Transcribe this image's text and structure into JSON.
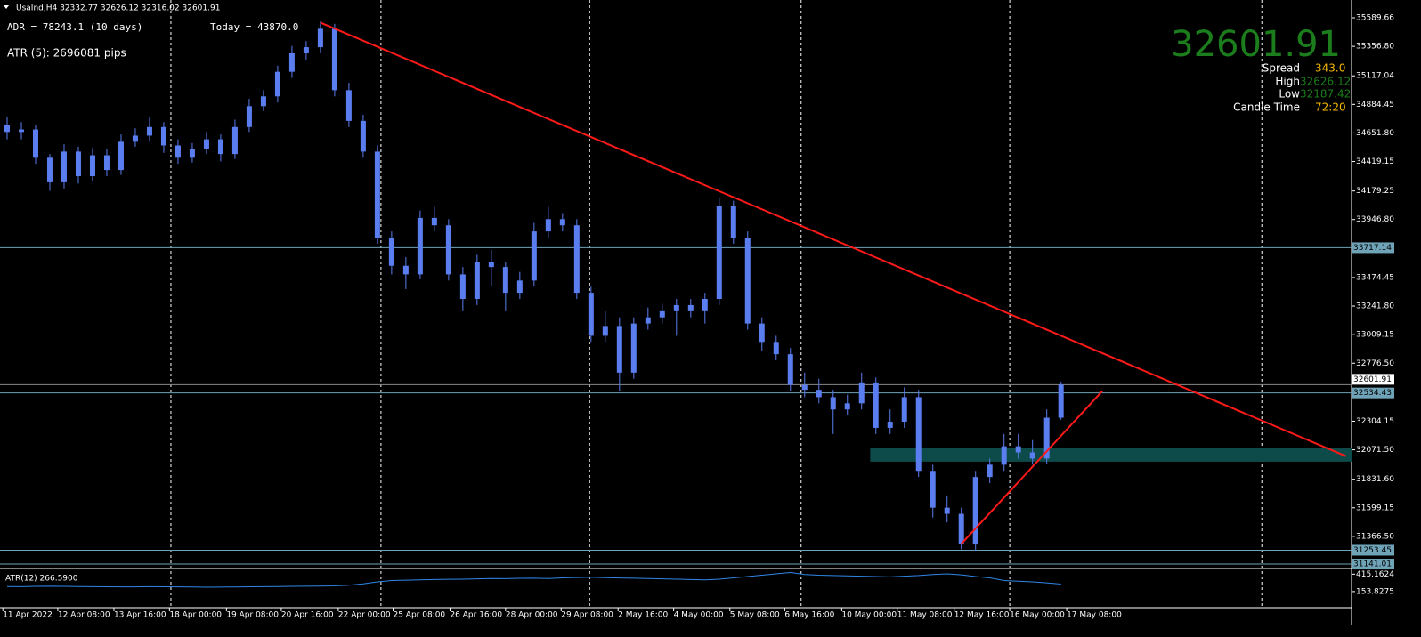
{
  "chart_data": {
    "type": "candlestick",
    "header": "UsaInd,H4  32332.77 32626.12 32316.02 32601.91",
    "annotations": {
      "adr": "ADR = 78243.1  (10 days)",
      "today": "Today = 43870.0",
      "atr": "ATR (5): 2696081 pips"
    },
    "info_panel": {
      "price": "32601.91",
      "spread_label": "Spread",
      "spread": "343.0",
      "high_label": "High",
      "high": "32626.12",
      "low_label": "Low",
      "low": "32187.42",
      "time_label": "Candle Time",
      "time": "72:20"
    },
    "color": "#5a7df0",
    "candles": [
      [
        34720,
        34780,
        34600,
        34660
      ],
      [
        34660,
        34740,
        34600,
        34680
      ],
      [
        34680,
        34720,
        34400,
        34450
      ],
      [
        34450,
        34480,
        34180,
        34250
      ],
      [
        34250,
        34560,
        34200,
        34500
      ],
      [
        34500,
        34540,
        34240,
        34300
      ],
      [
        34300,
        34530,
        34260,
        34470
      ],
      [
        34470,
        34520,
        34300,
        34350
      ],
      [
        34350,
        34640,
        34310,
        34580
      ],
      [
        34580,
        34690,
        34540,
        34630
      ],
      [
        34630,
        34780,
        34590,
        34700
      ],
      [
        34700,
        34740,
        34490,
        34550
      ],
      [
        34550,
        34600,
        34400,
        34450
      ],
      [
        34450,
        34570,
        34410,
        34520
      ],
      [
        34520,
        34660,
        34480,
        34600
      ],
      [
        34600,
        34640,
        34420,
        34480
      ],
      [
        34480,
        34760,
        34440,
        34700
      ],
      [
        34700,
        34930,
        34660,
        34870
      ],
      [
        34870,
        35000,
        34830,
        34950
      ],
      [
        34950,
        35200,
        34900,
        35150
      ],
      [
        35150,
        35360,
        35100,
        35300
      ],
      [
        35300,
        35400,
        35250,
        35350
      ],
      [
        35350,
        35560,
        35300,
        35500
      ],
      [
        35500,
        35540,
        34950,
        35000
      ],
      [
        35000,
        35060,
        34700,
        34750
      ],
      [
        34750,
        34800,
        34450,
        34500
      ],
      [
        34500,
        34550,
        33750,
        33800
      ],
      [
        33800,
        33850,
        33500,
        33570
      ],
      [
        33570,
        33640,
        33380,
        33500
      ],
      [
        33500,
        34020,
        33460,
        33960
      ],
      [
        33960,
        34050,
        33850,
        33900
      ],
      [
        33900,
        33950,
        33450,
        33500
      ],
      [
        33500,
        33560,
        33200,
        33300
      ],
      [
        33300,
        33660,
        33250,
        33600
      ],
      [
        33600,
        33700,
        33400,
        33560
      ],
      [
        33560,
        33600,
        33200,
        33350
      ],
      [
        33350,
        33520,
        33300,
        33450
      ],
      [
        33450,
        33920,
        33400,
        33850
      ],
      [
        33850,
        34050,
        33800,
        33950
      ],
      [
        33950,
        34000,
        33850,
        33900
      ],
      [
        33900,
        33950,
        33300,
        33350
      ],
      [
        33350,
        33400,
        32950,
        33000
      ],
      [
        33000,
        33200,
        32950,
        33080
      ],
      [
        33080,
        33150,
        32550,
        32700
      ],
      [
        32700,
        33150,
        32650,
        33100
      ],
      [
        33100,
        33230,
        33050,
        33150
      ],
      [
        33150,
        33260,
        33100,
        33200
      ],
      [
        33200,
        33300,
        33000,
        33250
      ],
      [
        33250,
        33300,
        33150,
        33200
      ],
      [
        33200,
        33350,
        33100,
        33300
      ],
      [
        33300,
        34120,
        33250,
        34060
      ],
      [
        34060,
        34100,
        33750,
        33800
      ],
      [
        33800,
        33850,
        33050,
        33100
      ],
      [
        33100,
        33150,
        32880,
        32950
      ],
      [
        32950,
        33000,
        32800,
        32850
      ],
      [
        32850,
        32900,
        32550,
        32600
      ],
      [
        32600,
        32700,
        32500,
        32560
      ],
      [
        32560,
        32650,
        32450,
        32500
      ],
      [
        32500,
        32560,
        32200,
        32400
      ],
      [
        32400,
        32520,
        32350,
        32450
      ],
      [
        32450,
        32700,
        32400,
        32620
      ],
      [
        32620,
        32660,
        32200,
        32250
      ],
      [
        32250,
        32400,
        32200,
        32300
      ],
      [
        32300,
        32580,
        32250,
        32500
      ],
      [
        32500,
        32560,
        31850,
        31900
      ],
      [
        31900,
        31950,
        31520,
        31600
      ],
      [
        31600,
        31700,
        31480,
        31550
      ],
      [
        31550,
        31600,
        31260,
        31300
      ],
      [
        31300,
        31900,
        31250,
        31850
      ],
      [
        31850,
        32000,
        31800,
        31950
      ],
      [
        31950,
        32200,
        31900,
        32100
      ],
      [
        32100,
        32200,
        32000,
        32050
      ],
      [
        32050,
        32150,
        31950,
        32000
      ],
      [
        32000,
        32400,
        31960,
        32332.77
      ],
      [
        32332.77,
        32626.12,
        32316.02,
        32601.91
      ]
    ],
    "xlim": [
      -0.5,
      94.4
    ],
    "xticks": [
      {
        "value": -0.3,
        "label": "11 Apr 2022"
      },
      {
        "value": 3.56,
        "label": "12 Apr 08:00"
      },
      {
        "value": 7.5,
        "label": "13 Apr 16:00"
      },
      {
        "value": 11.4,
        "label": "18 Apr 00:00"
      },
      {
        "value": 15.4,
        "label": "19 Apr 08:00"
      },
      {
        "value": 19.25,
        "label": "20 Apr 16:00"
      },
      {
        "value": 23.25,
        "label": "22 Apr 00:00"
      },
      {
        "value": 27.1,
        "label": "25 Apr 08:00"
      },
      {
        "value": 31.1,
        "label": "26 Apr 16:00"
      },
      {
        "value": 35,
        "label": "28 Apr 00:00"
      },
      {
        "value": 38.9,
        "label": "29 Apr 08:00"
      },
      {
        "value": 42.9,
        "label": "2 May 16:00"
      },
      {
        "value": 46.8,
        "label": "4 May 00:00"
      },
      {
        "value": 50.75,
        "label": "5 May 08:00"
      },
      {
        "value": 54.6,
        "label": "6 May 16:00"
      },
      {
        "value": 58.6,
        "label": "10 May 00:00"
      },
      {
        "value": 62.5,
        "label": "11 May 08:00"
      },
      {
        "value": 66.5,
        "label": "12 May 16:00"
      },
      {
        "value": 70.4,
        "label": "16 May 00:00"
      },
      {
        "value": 74.4,
        "label": "17 May 08:00"
      }
    ],
    "separators": [
      11.5,
      26.25,
      40.9,
      55.75,
      70.4,
      88.1
    ],
    "ylim": [
      31112,
      35720
    ],
    "yticks": [
      35589.66,
      {
        "value": 35356.8,
        "label": "35356.80"
      },
      35117.04,
      34884.45,
      {
        "value": 34651.8,
        "label": "34651.80"
      },
      34419.15,
      34179.25,
      {
        "value": 33946.8,
        "label": "33946.80"
      },
      33474.45,
      {
        "value": 33241.8,
        "label": "33241.80"
      },
      33009.15,
      {
        "value": 32776.5,
        "label": "32776.50"
      },
      32304.15,
      {
        "value": 32071.5,
        "label": "32071.50"
      },
      {
        "value": 31831.6,
        "label": "31831.60"
      },
      31599.15,
      {
        "value": 31366.5,
        "label": "31366.50"
      }
    ],
    "levels": [
      33717.14,
      32534.43,
      31253.45,
      31141.01
    ],
    "level_color": "#6fa3b8",
    "price_line": 32601.91,
    "trendlines": [
      {
        "x": [
          22,
          94
        ],
        "y": [
          35550,
          32020
        ]
      },
      {
        "x": [
          67,
          76.9
        ],
        "y": [
          31305,
          32550
        ]
      }
    ],
    "trend_color": "#ff1a1a",
    "zone": {
      "x": [
        60.6,
        94.4
      ],
      "y": [
        31975,
        32090
      ]
    },
    "zone_color": "#0d4a4a",
    "indicator": {
      "label": "ATR(12) 266.5900",
      "color": "#2f86e8",
      "ylim": [
        -88,
        473
      ],
      "yticks": [
        415.1624,
        153.8275
      ],
      "values": [
        230,
        228,
        232,
        235,
        233,
        230,
        228,
        226,
        224,
        225,
        227,
        226,
        224,
        222,
        220,
        221,
        223,
        226,
        228,
        230,
        232,
        234,
        236,
        240,
        250,
        270,
        300,
        320,
        325,
        330,
        335,
        338,
        340,
        345,
        350,
        348,
        352,
        355,
        350,
        360,
        365,
        370,
        362,
        358,
        355,
        350,
        345,
        340,
        335,
        330,
        340,
        360,
        380,
        400,
        420,
        440,
        410,
        400,
        395,
        390,
        385,
        380,
        375,
        385,
        395,
        410,
        420,
        405,
        380,
        360,
        320,
        310,
        300,
        285,
        266.59
      ]
    }
  }
}
